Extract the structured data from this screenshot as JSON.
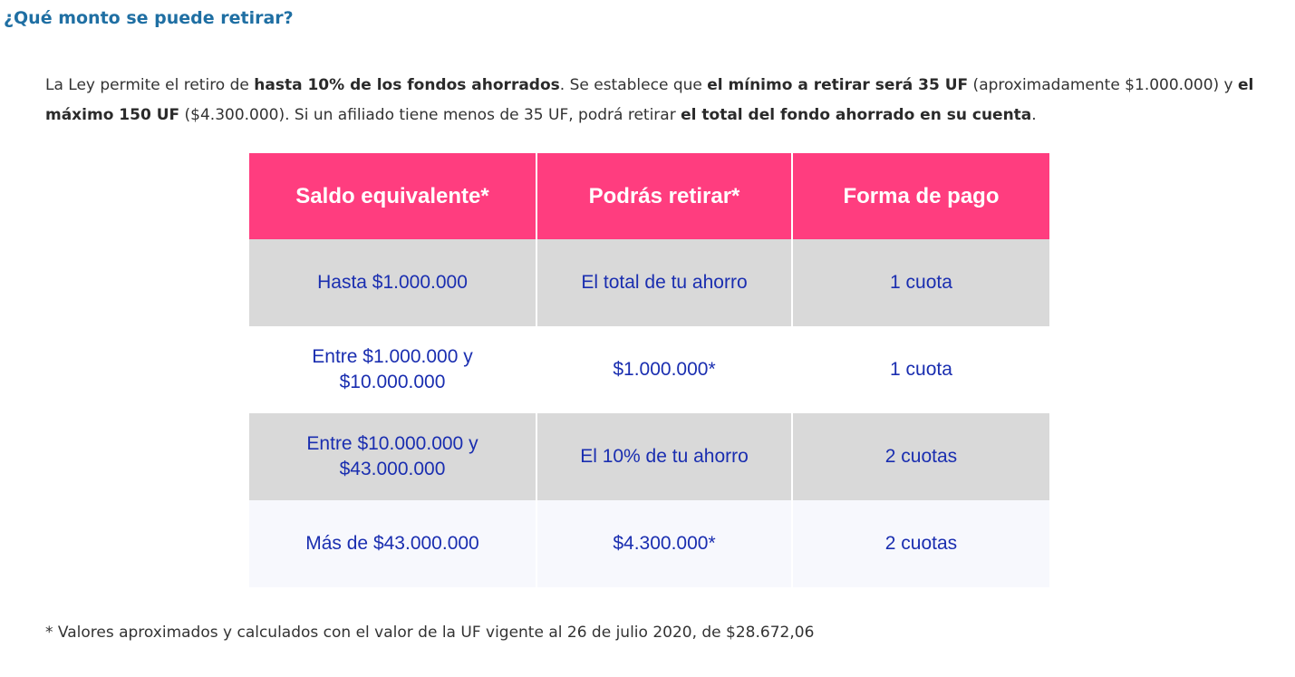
{
  "heading": "¿Qué monto se puede retirar?",
  "intro": {
    "t1": "La Ley permite el retiro de ",
    "b1": "hasta 10% de los fondos ahorrados",
    "t2": ". Se establece que ",
    "b2": "el mínimo a retirar será 35 UF",
    "t3": " (aproximadamente $1.000.000) y ",
    "b3": "el máximo 150 UF",
    "t4": " ($4.300.000). Si un afiliado tiene menos de 35 UF, podrá retirar ",
    "b4": "el total del fondo ahorrado en su cuenta",
    "t5": "."
  },
  "table": {
    "headers": [
      "Saldo equivalente*",
      "Podrás retirar*",
      "Forma de pago"
    ],
    "rows": [
      [
        "Hasta $1.000.000",
        "El total de tu ahorro",
        "1 cuota"
      ],
      [
        "Entre $1.000.000 y $10.000.000",
        "$1.000.000*",
        "1 cuota"
      ],
      [
        "Entre $10.000.000 y $43.000.000",
        "El 10% de tu ahorro",
        "2 cuotas"
      ],
      [
        "Más de $43.000.000",
        "$4.300.000*",
        "2 cuotas"
      ]
    ]
  },
  "footnote": "* Valores aproximados y calculados con el valor de la UF vigente al 26 de julio 2020, de $28.672,06",
  "colors": {
    "heading": "#1f6fa3",
    "header_bg": "#ff3d7f",
    "cell_text": "#1a2eb0",
    "row_gray": "#d9d9d9",
    "row_light": "#f7f8fd"
  }
}
